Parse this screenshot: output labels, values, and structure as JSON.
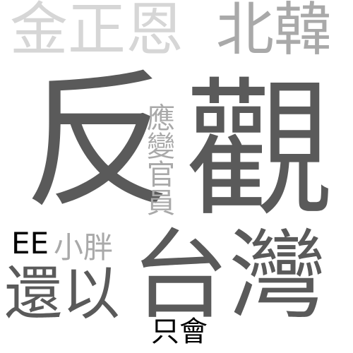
{
  "words": {
    "fan": {
      "text": "反",
      "color": "#5a5a5a"
    },
    "guan": {
      "text": "觀",
      "color": "#5a5a5a"
    },
    "jinzhengen": {
      "text": "金正恩",
      "color": "#d6d6d6"
    },
    "beihan": {
      "text": "北韓",
      "color": "#a9a9a9"
    },
    "taiwan": {
      "text": "台灣",
      "color": "#5a5a5a"
    },
    "huanyi": {
      "text": "還以",
      "color": "#5a5a5a"
    },
    "xiaopang": {
      "text": "小胖",
      "color": "#a9a9a9"
    },
    "ee": {
      "text": "EE",
      "color": "#000000"
    },
    "yingbian_guanyuan": {
      "text": "應變官員",
      "color": "#a9a9a9",
      "orientation": "vertical"
    },
    "zhihui": {
      "text": "只會",
      "color": "#000000"
    }
  }
}
